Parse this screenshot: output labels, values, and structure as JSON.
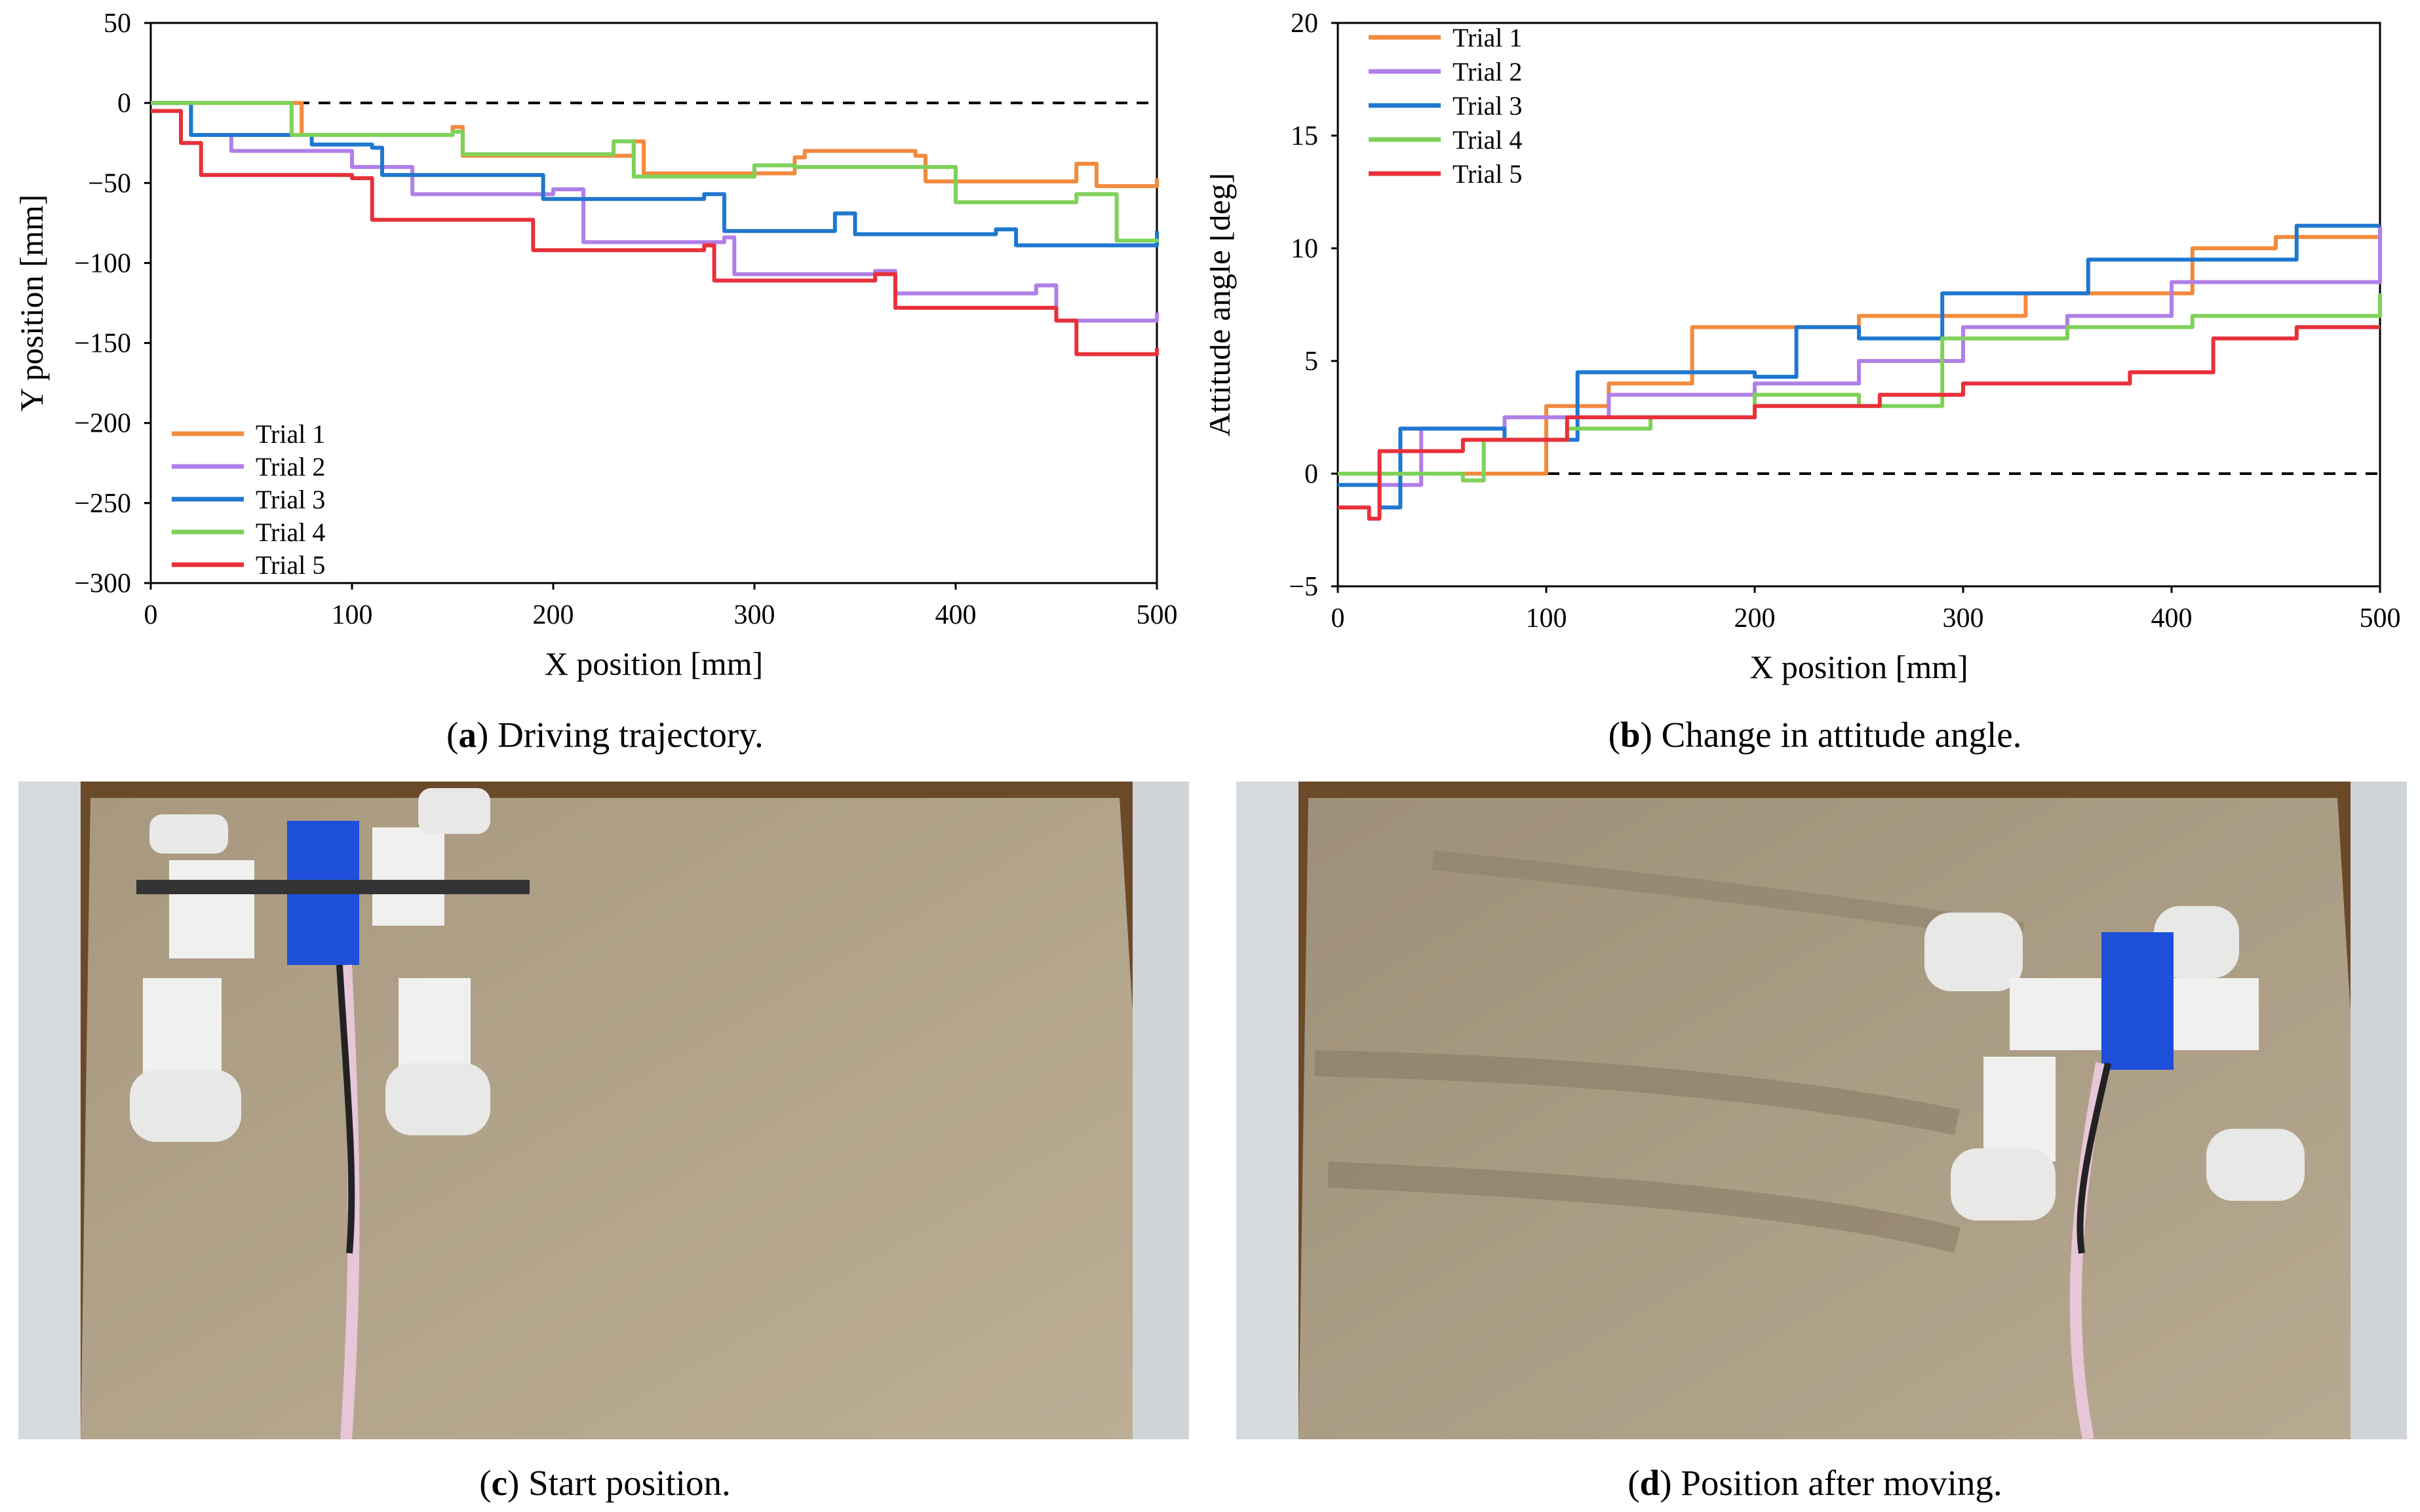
{
  "figure_a": {
    "caption_letter": "a",
    "caption_text": "Driving trajectory.",
    "chart_data": {
      "type": "line",
      "xlabel": "X position [mm]",
      "ylabel": "Y position [mm]",
      "xlim": [
        0,
        500
      ],
      "ylim": [
        -300,
        50
      ],
      "xticks": [
        "0",
        "100",
        "200",
        "300",
        "400",
        "500"
      ],
      "yticks": [
        "50",
        "0",
        "−50",
        "−100",
        "−150",
        "−200",
        "−250",
        "−300"
      ],
      "reference_line": {
        "y": 0,
        "style": "dashed"
      },
      "legend_position": "bottom-left",
      "grid": false,
      "series": [
        {
          "name": "Trial 1",
          "color": "#f28a3c",
          "x": [
            0,
            65,
            75,
            150,
            155,
            240,
            245,
            320,
            325,
            380,
            385,
            460,
            470,
            500
          ],
          "y": [
            0,
            0,
            -20,
            -15,
            -33,
            -24,
            -44,
            -34,
            -30,
            -33,
            -49,
            -38,
            -52,
            -47
          ]
        },
        {
          "name": "Trial 2",
          "color": "#b07fe8",
          "x": [
            0,
            20,
            40,
            100,
            130,
            200,
            215,
            285,
            290,
            360,
            370,
            440,
            450,
            500
          ],
          "y": [
            0,
            -20,
            -30,
            -40,
            -57,
            -54,
            -87,
            -84,
            -107,
            -105,
            -119,
            -114,
            -136,
            -131
          ]
        },
        {
          "name": "Trial 3",
          "color": "#1f77d0",
          "x": [
            0,
            20,
            80,
            110,
            115,
            190,
            195,
            275,
            285,
            340,
            350,
            420,
            430,
            500
          ],
          "y": [
            0,
            -20,
            -26,
            -28,
            -45,
            -45,
            -60,
            -57,
            -80,
            -69,
            -82,
            -79,
            -89,
            -80
          ]
        },
        {
          "name": "Trial 4",
          "color": "#7fd15a",
          "x": [
            0,
            60,
            70,
            150,
            155,
            230,
            240,
            300,
            320,
            390,
            400,
            460,
            480,
            500
          ],
          "y": [
            0,
            0,
            -20,
            -18,
            -32,
            -24,
            -46,
            -39,
            -40,
            -40,
            -62,
            -57,
            -86,
            -85
          ]
        },
        {
          "name": "Trial 5",
          "color": "#e8303a",
          "x": [
            0,
            15,
            25,
            100,
            110,
            185,
            190,
            275,
            280,
            360,
            370,
            450,
            460,
            500
          ],
          "y": [
            -5,
            -25,
            -45,
            -47,
            -73,
            -73,
            -92,
            -89,
            -111,
            -107,
            -128,
            -136,
            -157,
            -153
          ]
        }
      ]
    }
  },
  "figure_b": {
    "caption_letter": "b",
    "caption_text": "Change in attitude angle.",
    "chart_data": {
      "type": "line",
      "xlabel": "X position [mm]",
      "ylabel": "Attitude angle [deg]",
      "xlim": [
        0,
        500
      ],
      "ylim": [
        -5,
        20
      ],
      "xticks": [
        "0",
        "100",
        "200",
        "300",
        "400",
        "500"
      ],
      "yticks": [
        "20",
        "15",
        "10",
        "5",
        "0",
        "−5"
      ],
      "reference_line": {
        "y": 0,
        "style": "dashed"
      },
      "legend_position": "top-left",
      "grid": false,
      "series": [
        {
          "name": "Trial 1",
          "color": "#f28a3c",
          "x": [
            0,
            70,
            100,
            130,
            170,
            200,
            250,
            290,
            330,
            360,
            410,
            450,
            500
          ],
          "y": [
            0,
            0,
            3,
            4,
            6.5,
            6.5,
            7,
            7,
            8,
            8,
            10,
            10.5,
            10.5
          ]
        },
        {
          "name": "Trial 2",
          "color": "#b07fe8",
          "x": [
            0,
            20,
            40,
            80,
            130,
            200,
            250,
            300,
            350,
            400,
            440,
            500
          ],
          "y": [
            0,
            -0.5,
            2,
            2.5,
            3.5,
            4,
            5,
            6.5,
            7,
            8.5,
            8.5,
            11
          ]
        },
        {
          "name": "Trial 3",
          "color": "#1f77d0",
          "x": [
            0,
            20,
            30,
            80,
            115,
            200,
            220,
            250,
            290,
            340,
            360,
            440,
            460,
            500
          ],
          "y": [
            -0.5,
            -1.5,
            2,
            1.5,
            4.5,
            4.3,
            6.5,
            6,
            8,
            8,
            9.5,
            9.5,
            11,
            11
          ]
        },
        {
          "name": "Trial 4",
          "color": "#7fd15a",
          "x": [
            0,
            60,
            70,
            110,
            150,
            200,
            250,
            290,
            350,
            410,
            450,
            500
          ],
          "y": [
            0,
            -0.3,
            1.5,
            2,
            2.5,
            3.5,
            3,
            6,
            6.5,
            7,
            7,
            8
          ]
        },
        {
          "name": "Trial 5",
          "color": "#e8303a",
          "x": [
            0,
            15,
            20,
            60,
            110,
            200,
            260,
            300,
            380,
            420,
            460,
            500
          ],
          "y": [
            -1.5,
            -2,
            1,
            1.5,
            2.5,
            3,
            3.5,
            4,
            4.5,
            6,
            6.5,
            6.5
          ]
        }
      ]
    }
  },
  "figure_c": {
    "caption_letter": "c",
    "caption_text": "Start position."
  },
  "figure_d": {
    "caption_letter": "d",
    "caption_text": "Position after moving."
  }
}
